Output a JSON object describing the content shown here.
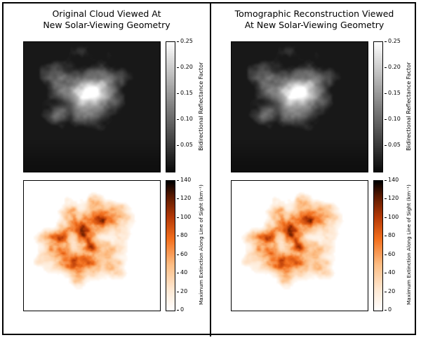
{
  "figure": {
    "background": "#ffffff",
    "border_color": "#000000"
  },
  "colormaps": {
    "reflectance": [
      [
        0,
        "#0b0b0b"
      ],
      [
        0.5,
        "#7f7f7f"
      ],
      [
        1,
        "#ffffff"
      ]
    ],
    "extinction": [
      [
        0,
        "#ffffff"
      ],
      [
        0.15,
        "#feead6"
      ],
      [
        0.35,
        "#fdbe85"
      ],
      [
        0.55,
        "#f3701e"
      ],
      [
        0.72,
        "#b63a07"
      ],
      [
        0.88,
        "#5c1a00"
      ],
      [
        1,
        "#000000"
      ]
    ]
  },
  "chart_data": [
    {
      "id": "left-top",
      "type": "heatmap",
      "title_lines": [
        "Original Cloud Viewed At",
        "New Solar-Viewing Geometry"
      ],
      "content": "Grayscale rendering of a cumulus cloud: bright fuzzy white blob in upper-center on a dark near-black background",
      "colormap": "gray (black to white)",
      "plot_background": "#181818",
      "colorbar": {
        "label": "Bidirectional Reflectance Factor",
        "tick_labels": [
          "0.05",
          "0.10",
          "0.15",
          "0.20",
          "0.25"
        ],
        "tick_values": [
          0.05,
          0.1,
          0.15,
          0.2,
          0.25
        ],
        "range": [
          0,
          0.25
        ]
      }
    },
    {
      "id": "left-bottom",
      "type": "heatmap",
      "title_lines": [],
      "content": "Speckled orange extinction map of the same cloud on white background; darkest red/black speckles concentrated in the upper-left of the cloud, light orange fragments trailing below",
      "colormap": "white-orange-red-black (reversed heat)",
      "plot_background": "#ffffff",
      "colorbar": {
        "label": "Maximum Extinction Along Line of Sight (km⁻¹)",
        "tick_labels": [
          "0",
          "20",
          "40",
          "60",
          "80",
          "100",
          "120",
          "140"
        ],
        "tick_values": [
          0,
          20,
          40,
          60,
          80,
          100,
          120,
          140
        ],
        "range": [
          0,
          140
        ]
      }
    },
    {
      "id": "right-top",
      "type": "heatmap",
      "title_lines": [
        "Tomographic Reconstruction Viewed",
        "At New Solar-Viewing Geometry"
      ],
      "content": "Grayscale rendering of the tomographically reconstructed cloud, visually nearly identical to the original: bright fuzzy white blob in upper-center on dark background",
      "colormap": "gray (black to white)",
      "plot_background": "#181818",
      "colorbar": {
        "label": "Bidirectional Reflectance Factor",
        "tick_labels": [
          "0.05",
          "0.10",
          "0.15",
          "0.20",
          "0.25"
        ],
        "tick_values": [
          0.05,
          0.1,
          0.15,
          0.2,
          0.25
        ],
        "range": [
          0,
          0.25
        ]
      }
    },
    {
      "id": "right-bottom",
      "type": "heatmap",
      "title_lines": [],
      "content": "Speckled orange extinction map of the reconstructed cloud on white background, matching the original's pattern of dark red speckles near the cloud top",
      "colormap": "white-orange-red-black (reversed heat)",
      "plot_background": "#ffffff",
      "colorbar": {
        "label": "Maximum Extinction Along Line of Sight (km⁻¹)",
        "tick_labels": [
          "0",
          "20",
          "40",
          "60",
          "80",
          "100",
          "120",
          "140"
        ],
        "tick_values": [
          0,
          20,
          40,
          60,
          80,
          100,
          120,
          140
        ],
        "range": [
          0,
          140
        ]
      }
    }
  ]
}
